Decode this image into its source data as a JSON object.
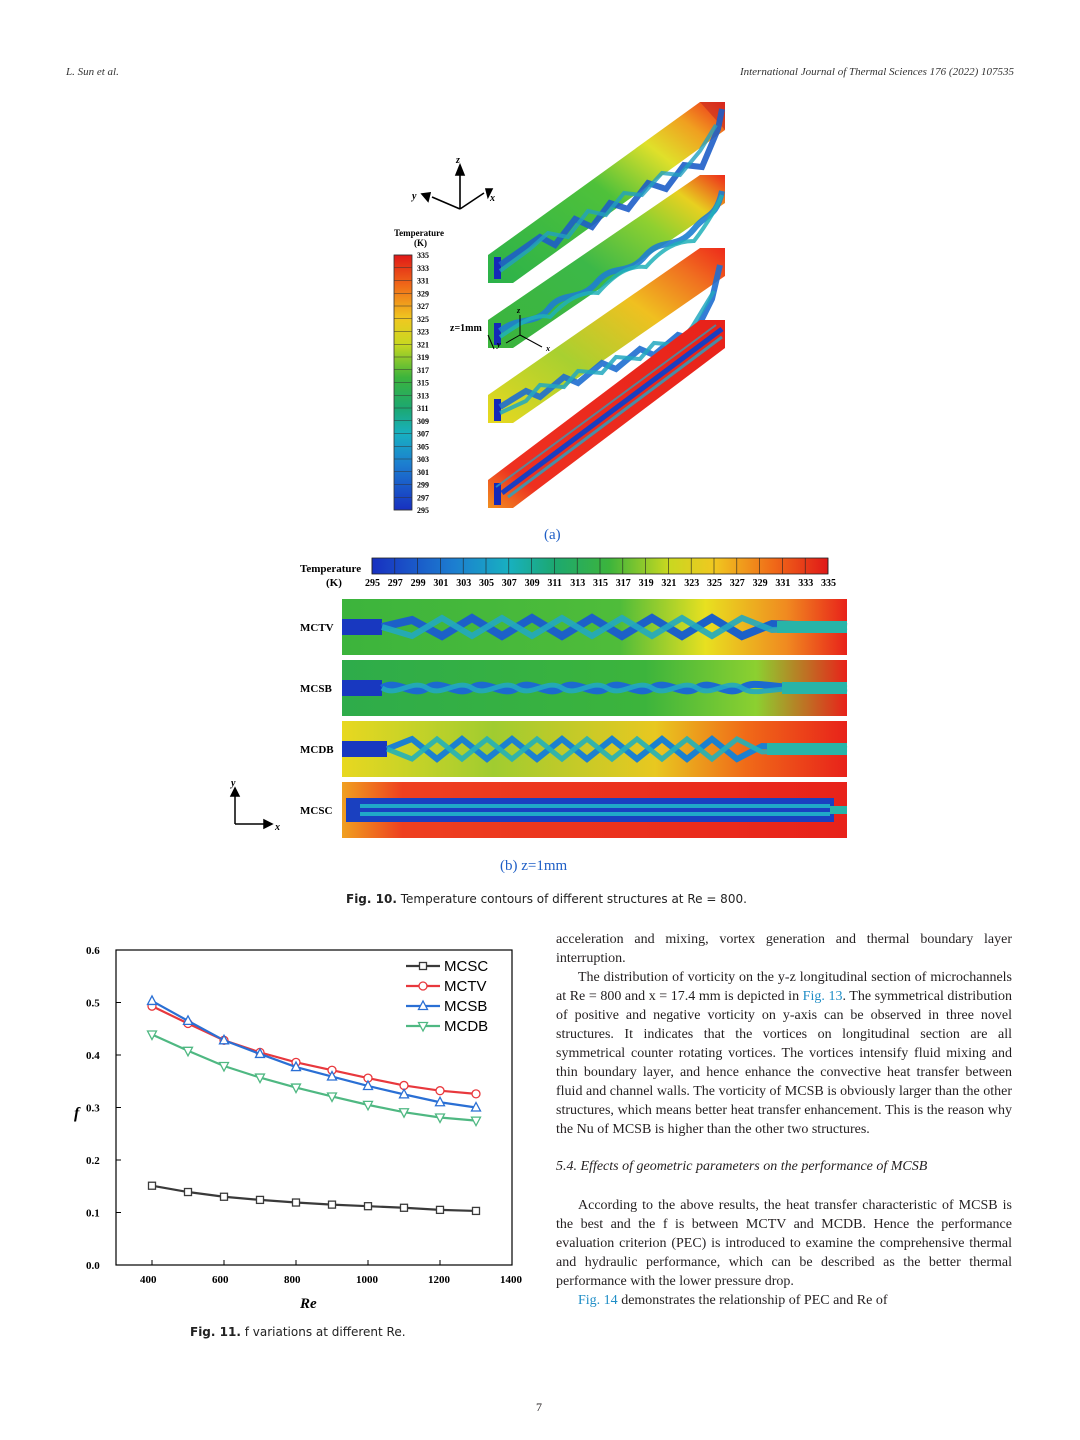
{
  "header": {
    "left": "L. Sun et al.",
    "right": "International Journal of Thermal Sciences 176 (2022) 107535"
  },
  "fig10": {
    "panel_a_label": "(a)",
    "panel_b_label": "(b) z=1mm",
    "legend_title": "Temperature",
    "legend_unit": "(K)",
    "scale_ticks": [
      "335",
      "333",
      "331",
      "329",
      "327",
      "325",
      "323",
      "321",
      "319",
      "317",
      "315",
      "313",
      "311",
      "309",
      "307",
      "305",
      "303",
      "301",
      "299",
      "297",
      "295"
    ],
    "horiz_ticks": [
      "295",
      "297",
      "299",
      "301",
      "303",
      "305",
      "307",
      "309",
      "311",
      "313",
      "315",
      "317",
      "319",
      "321",
      "323",
      "325",
      "327",
      "329",
      "331",
      "333",
      "335"
    ],
    "axes": {
      "z": "z",
      "y": "y",
      "x": "x"
    },
    "z_annotation": "z=1mm",
    "channel_labels": [
      "MCTV",
      "MCSB",
      "MCDB",
      "MCSC"
    ],
    "caption_label": "Fig. 10.",
    "caption_text": "Temperature contours of different structures at Re = 800."
  },
  "fig11": {
    "caption_label": "Fig. 11.",
    "caption_text": "f variations at different Re."
  },
  "chart_data": {
    "type": "line",
    "title": "",
    "xlabel": "Re",
    "ylabel": "f",
    "xlim": [
      300,
      1400
    ],
    "ylim": [
      0.0,
      0.6
    ],
    "x_ticks": [
      "400",
      "600",
      "800",
      "1000",
      "1200",
      "1400"
    ],
    "y_ticks": [
      "0.0",
      "0.1",
      "0.2",
      "0.3",
      "0.4",
      "0.5",
      "0.6"
    ],
    "legend_position": "top-right",
    "x": [
      400,
      500,
      600,
      700,
      800,
      900,
      1000,
      1100,
      1200,
      1300
    ],
    "series": [
      {
        "name": "MCSC",
        "color": "#3a3a3a",
        "marker": "square",
        "values": [
          0.151,
          0.139,
          0.13,
          0.124,
          0.119,
          0.115,
          0.112,
          0.109,
          0.105,
          0.103
        ]
      },
      {
        "name": "MCTV",
        "color": "#e8383d",
        "marker": "circle",
        "values": [
          0.493,
          0.46,
          0.428,
          0.405,
          0.386,
          0.371,
          0.356,
          0.342,
          0.332,
          0.326
        ]
      },
      {
        "name": "MCSB",
        "color": "#2a6fd4",
        "marker": "triangle-up",
        "values": [
          0.503,
          0.465,
          0.428,
          0.402,
          0.377,
          0.359,
          0.341,
          0.325,
          0.31,
          0.3
        ]
      },
      {
        "name": "MCDB",
        "color": "#4fb882",
        "marker": "triangle-down",
        "values": [
          0.439,
          0.408,
          0.379,
          0.357,
          0.338,
          0.321,
          0.305,
          0.291,
          0.281,
          0.275
        ]
      }
    ]
  },
  "body": {
    "p1": "acceleration and mixing, vortex generation and thermal boundary layer interruption.",
    "p2_a": "The distribution of vorticity on the y-z longitudinal section of microchannels at Re = 800 and x = 17.4 mm is depicted in",
    "p2_link": "Fig. 13",
    "p2_b": ". The symmetrical distribution of positive and negative vorticity on y-axis can be observed in three novel structures. It indicates that the vortices on longitudinal section are all symmetrical counter rotating vortices. The vortices intensify fluid mixing and thin boundary layer, and hence enhance the convective heat transfer between fluid and channel walls. The vorticity of MCSB is obviously larger than the other structures, which means better heat transfer enhancement. This is the reason why the Nu of MCSB is higher than the other two structures.",
    "section": "5.4. Effects of geometric parameters on the performance of MCSB",
    "p3": "According to the above results, the heat transfer characteristic of MCSB is the best and the f is between MCTV and MCDB. Hence the performance evaluation criterion (PEC) is introduced to examine the comprehensive thermal and hydraulic performance, which can be described as the better thermal performance with the lower pressure drop.",
    "p4_link": "Fig. 14",
    "p4_text": "demonstrates the relationship of PEC and Re of"
  },
  "page_number": "7"
}
